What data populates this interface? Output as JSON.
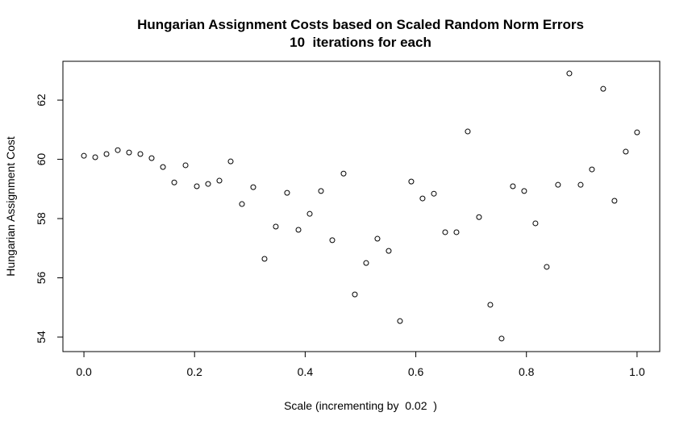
{
  "chart_data": {
    "type": "scatter",
    "title": "Hungarian Assignment Costs based on Scaled Random Norm Errors",
    "subtitle": "10  iterations for each",
    "x_label": "Scale (incrementing by  0.02  )",
    "y_label": "Hungarian Assignment Cost",
    "x": [
      0,
      0.0204,
      0.0408,
      0.0612,
      0.0816,
      0.102,
      0.1224,
      0.1429,
      0.1633,
      0.1837,
      0.2041,
      0.2245,
      0.2449,
      0.2653,
      0.2857,
      0.3061,
      0.3265,
      0.3469,
      0.3673,
      0.3878,
      0.4082,
      0.4286,
      0.449,
      0.4694,
      0.4898,
      0.5102,
      0.5306,
      0.551,
      0.5714,
      0.5918,
      0.6122,
      0.6327,
      0.6531,
      0.6735,
      0.6939,
      0.7143,
      0.7347,
      0.7551,
      0.7755,
      0.7959,
      0.8163,
      0.8367,
      0.8571,
      0.8776,
      0.898,
      0.9184,
      0.9388,
      0.9592,
      0.9796,
      1
    ],
    "values": [
      60.12,
      60.07,
      60.18,
      60.31,
      60.23,
      60.18,
      60.04,
      59.74,
      59.22,
      59.8,
      59.09,
      59.17,
      59.28,
      59.93,
      58.49,
      59.06,
      56.64,
      57.73,
      58.87,
      57.62,
      58.16,
      58.93,
      57.27,
      59.52,
      55.44,
      56.5,
      57.32,
      56.91,
      54.54,
      59.25,
      58.68,
      58.84,
      57.54,
      57.54,
      60.94,
      58.05,
      55.09,
      53.95,
      59.09,
      58.93,
      57.84,
      56.37,
      59.14,
      62.9,
      59.14,
      59.66,
      62.38,
      58.6,
      60.26,
      60.91
    ],
    "color": "#000000",
    "xlim": [
      -0.038,
      1.041
    ],
    "ylim": [
      53.51,
      63.31
    ],
    "xticks": [
      {
        "value": 0,
        "label": "0.0"
      },
      0.2,
      0.4,
      0.6,
      0.8,
      {
        "value": 1,
        "label": "1.0"
      }
    ],
    "yticks": [
      54,
      56,
      58,
      60,
      62
    ]
  }
}
